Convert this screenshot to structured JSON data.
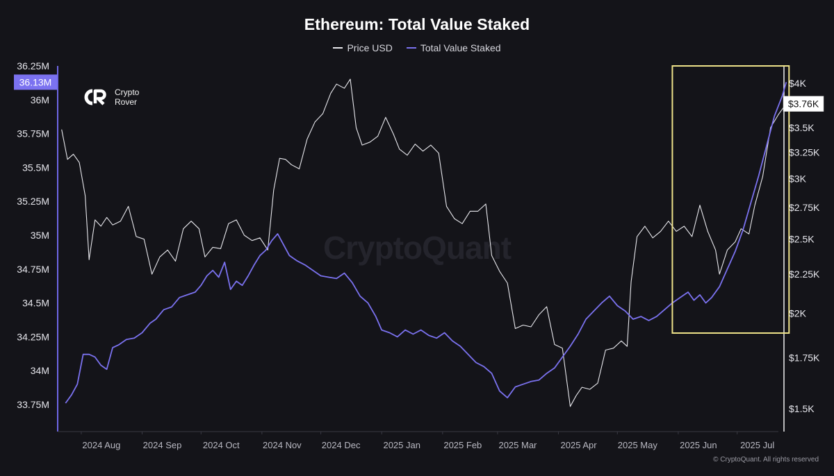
{
  "chart_data": {
    "type": "line",
    "title": "Ethereum: Total Value Staked",
    "legend_placement": "top-center",
    "grid": false,
    "colors": {
      "background": "#141419",
      "price": "#e9e9ee",
      "staked": "#7b72f0",
      "highlight_box": "#efe38a"
    },
    "x_ticks": [
      "2024 Aug",
      "2024 Sep",
      "2024 Oct",
      "2024 Nov",
      "2024 Dec",
      "2025 Jan",
      "2025 Feb",
      "2025 Mar",
      "2025 Apr",
      "2025 May",
      "2025 Jun",
      "2025 Jul"
    ],
    "x_range": [
      "2024-07-20",
      "2025-07-22"
    ],
    "y_left": {
      "ticks": [
        "36.25M",
        "36M",
        "35.75M",
        "35.5M",
        "35.25M",
        "35M",
        "34.75M",
        "34.5M",
        "34.25M",
        "34M",
        "33.75M"
      ],
      "range_millions": [
        33.55,
        36.25
      ],
      "current_label": "36.13M"
    },
    "y_right": {
      "ticks": [
        "$4K",
        "$3.5K",
        "$3.25K",
        "$3K",
        "$2.75K",
        "$2.5K",
        "$2.25K",
        "$2K",
        "$1.75K",
        "$1.5K"
      ],
      "current_label": "$3.76K",
      "scale": "log"
    },
    "series": [
      {
        "name": "Total Value Staked",
        "unit": "millions",
        "axis": "left",
        "points": [
          [
            "2024-07-24",
            33.76
          ],
          [
            "2024-07-27",
            33.82
          ],
          [
            "2024-07-30",
            33.9
          ],
          [
            "2024-08-02",
            34.12
          ],
          [
            "2024-08-05",
            34.12
          ],
          [
            "2024-08-08",
            34.1
          ],
          [
            "2024-08-11",
            34.04
          ],
          [
            "2024-08-14",
            34.01
          ],
          [
            "2024-08-17",
            34.17
          ],
          [
            "2024-08-20",
            34.19
          ],
          [
            "2024-08-24",
            34.23
          ],
          [
            "2024-08-28",
            34.24
          ],
          [
            "2024-09-01",
            34.28
          ],
          [
            "2024-09-05",
            34.35
          ],
          [
            "2024-09-08",
            34.38
          ],
          [
            "2024-09-12",
            34.45
          ],
          [
            "2024-09-16",
            34.47
          ],
          [
            "2024-09-20",
            34.54
          ],
          [
            "2024-09-24",
            34.56
          ],
          [
            "2024-09-28",
            34.58
          ],
          [
            "2024-10-01",
            34.63
          ],
          [
            "2024-10-04",
            34.7
          ],
          [
            "2024-10-07",
            34.74
          ],
          [
            "2024-10-10",
            34.69
          ],
          [
            "2024-10-13",
            34.8
          ],
          [
            "2024-10-16",
            34.6
          ],
          [
            "2024-10-19",
            34.66
          ],
          [
            "2024-10-22",
            34.63
          ],
          [
            "2024-10-25",
            34.7
          ],
          [
            "2024-10-28",
            34.78
          ],
          [
            "2024-10-31",
            34.85
          ],
          [
            "2024-11-03",
            34.89
          ],
          [
            "2024-11-06",
            34.96
          ],
          [
            "2024-11-09",
            35.01
          ],
          [
            "2024-11-12",
            34.93
          ],
          [
            "2024-11-15",
            34.85
          ],
          [
            "2024-11-19",
            34.81
          ],
          [
            "2024-11-23",
            34.78
          ],
          [
            "2024-11-27",
            34.74
          ],
          [
            "2024-12-01",
            34.7
          ],
          [
            "2024-12-05",
            34.69
          ],
          [
            "2024-12-09",
            34.68
          ],
          [
            "2024-12-13",
            34.72
          ],
          [
            "2024-12-17",
            34.65
          ],
          [
            "2024-12-21",
            34.55
          ],
          [
            "2024-12-25",
            34.5
          ],
          [
            "2024-12-29",
            34.4
          ],
          [
            "2025-01-01",
            34.3
          ],
          [
            "2025-01-05",
            34.28
          ],
          [
            "2025-01-09",
            34.25
          ],
          [
            "2025-01-13",
            34.3
          ],
          [
            "2025-01-17",
            34.27
          ],
          [
            "2025-01-21",
            34.3
          ],
          [
            "2025-01-25",
            34.26
          ],
          [
            "2025-01-29",
            34.24
          ],
          [
            "2025-02-02",
            34.28
          ],
          [
            "2025-02-06",
            34.22
          ],
          [
            "2025-02-10",
            34.18
          ],
          [
            "2025-02-14",
            34.12
          ],
          [
            "2025-02-18",
            34.06
          ],
          [
            "2025-02-22",
            34.03
          ],
          [
            "2025-02-26",
            33.98
          ],
          [
            "2025-03-02",
            33.85
          ],
          [
            "2025-03-06",
            33.8
          ],
          [
            "2025-03-10",
            33.88
          ],
          [
            "2025-03-14",
            33.9
          ],
          [
            "2025-03-18",
            33.92
          ],
          [
            "2025-03-22",
            33.93
          ],
          [
            "2025-03-26",
            33.98
          ],
          [
            "2025-03-30",
            34.02
          ],
          [
            "2025-04-03",
            34.1
          ],
          [
            "2025-04-07",
            34.18
          ],
          [
            "2025-04-11",
            34.27
          ],
          [
            "2025-04-15",
            34.38
          ],
          [
            "2025-04-19",
            34.44
          ],
          [
            "2025-04-23",
            34.5
          ],
          [
            "2025-04-27",
            34.55
          ],
          [
            "2025-05-01",
            34.48
          ],
          [
            "2025-05-05",
            34.44
          ],
          [
            "2025-05-09",
            34.38
          ],
          [
            "2025-05-13",
            34.4
          ],
          [
            "2025-05-17",
            34.37
          ],
          [
            "2025-05-21",
            34.4
          ],
          [
            "2025-05-25",
            34.45
          ],
          [
            "2025-05-29",
            34.5
          ],
          [
            "2025-06-02",
            34.54
          ],
          [
            "2025-06-06",
            34.58
          ],
          [
            "2025-06-09",
            34.52
          ],
          [
            "2025-06-12",
            34.56
          ],
          [
            "2025-06-15",
            34.5
          ],
          [
            "2025-06-18",
            34.54
          ],
          [
            "2025-06-22",
            34.62
          ],
          [
            "2025-06-26",
            34.75
          ],
          [
            "2025-06-30",
            34.88
          ],
          [
            "2025-07-04",
            35.04
          ],
          [
            "2025-07-08",
            35.24
          ],
          [
            "2025-07-12",
            35.44
          ],
          [
            "2025-07-16",
            35.66
          ],
          [
            "2025-07-20",
            35.88
          ],
          [
            "2025-07-24",
            36.03
          ],
          [
            "2025-07-26",
            36.13
          ]
        ]
      },
      {
        "name": "Price USD",
        "unit": "USD",
        "axis": "right",
        "points": [
          [
            "2024-07-22",
            3480
          ],
          [
            "2024-07-25",
            3180
          ],
          [
            "2024-07-28",
            3230
          ],
          [
            "2024-07-31",
            3150
          ],
          [
            "2024-08-03",
            2850
          ],
          [
            "2024-08-05",
            2350
          ],
          [
            "2024-08-08",
            2650
          ],
          [
            "2024-08-11",
            2600
          ],
          [
            "2024-08-14",
            2670
          ],
          [
            "2024-08-17",
            2610
          ],
          [
            "2024-08-21",
            2640
          ],
          [
            "2024-08-25",
            2760
          ],
          [
            "2024-08-29",
            2520
          ],
          [
            "2024-09-02",
            2500
          ],
          [
            "2024-09-06",
            2250
          ],
          [
            "2024-09-10",
            2370
          ],
          [
            "2024-09-14",
            2420
          ],
          [
            "2024-09-18",
            2340
          ],
          [
            "2024-09-22",
            2580
          ],
          [
            "2024-09-26",
            2640
          ],
          [
            "2024-09-30",
            2580
          ],
          [
            "2024-10-03",
            2370
          ],
          [
            "2024-10-07",
            2440
          ],
          [
            "2024-10-11",
            2430
          ],
          [
            "2024-10-15",
            2620
          ],
          [
            "2024-10-19",
            2650
          ],
          [
            "2024-10-23",
            2530
          ],
          [
            "2024-10-27",
            2490
          ],
          [
            "2024-10-31",
            2510
          ],
          [
            "2024-11-04",
            2420
          ],
          [
            "2024-11-07",
            2900
          ],
          [
            "2024-11-10",
            3190
          ],
          [
            "2024-11-13",
            3180
          ],
          [
            "2024-11-16",
            3130
          ],
          [
            "2024-11-20",
            3090
          ],
          [
            "2024-11-24",
            3380
          ],
          [
            "2024-11-28",
            3560
          ],
          [
            "2024-12-02",
            3650
          ],
          [
            "2024-12-06",
            3880
          ],
          [
            "2024-12-09",
            3990
          ],
          [
            "2024-12-13",
            3940
          ],
          [
            "2024-12-16",
            4050
          ],
          [
            "2024-12-19",
            3500
          ],
          [
            "2024-12-22",
            3320
          ],
          [
            "2024-12-26",
            3350
          ],
          [
            "2024-12-30",
            3410
          ],
          [
            "2025-01-03",
            3610
          ],
          [
            "2025-01-07",
            3430
          ],
          [
            "2025-01-10",
            3280
          ],
          [
            "2025-01-14",
            3220
          ],
          [
            "2025-01-18",
            3330
          ],
          [
            "2025-01-22",
            3260
          ],
          [
            "2025-01-26",
            3320
          ],
          [
            "2025-01-30",
            3240
          ],
          [
            "2025-02-03",
            2760
          ],
          [
            "2025-02-07",
            2660
          ],
          [
            "2025-02-11",
            2620
          ],
          [
            "2025-02-15",
            2720
          ],
          [
            "2025-02-19",
            2720
          ],
          [
            "2025-02-23",
            2780
          ],
          [
            "2025-02-26",
            2380
          ],
          [
            "2025-03-02",
            2270
          ],
          [
            "2025-03-06",
            2190
          ],
          [
            "2025-03-10",
            1910
          ],
          [
            "2025-03-14",
            1930
          ],
          [
            "2025-03-18",
            1920
          ],
          [
            "2025-03-22",
            1990
          ],
          [
            "2025-03-26",
            2040
          ],
          [
            "2025-03-30",
            1820
          ],
          [
            "2025-04-03",
            1800
          ],
          [
            "2025-04-07",
            1510
          ],
          [
            "2025-04-10",
            1560
          ],
          [
            "2025-04-13",
            1600
          ],
          [
            "2025-04-17",
            1590
          ],
          [
            "2025-04-21",
            1620
          ],
          [
            "2025-04-25",
            1790
          ],
          [
            "2025-04-29",
            1800
          ],
          [
            "2025-05-03",
            1840
          ],
          [
            "2025-05-06",
            1810
          ],
          [
            "2025-05-08",
            2200
          ],
          [
            "2025-05-11",
            2520
          ],
          [
            "2025-05-15",
            2600
          ],
          [
            "2025-05-19",
            2510
          ],
          [
            "2025-05-23",
            2560
          ],
          [
            "2025-05-27",
            2640
          ],
          [
            "2025-05-31",
            2560
          ],
          [
            "2025-06-04",
            2600
          ],
          [
            "2025-06-08",
            2520
          ],
          [
            "2025-06-12",
            2770
          ],
          [
            "2025-06-16",
            2560
          ],
          [
            "2025-06-20",
            2420
          ],
          [
            "2025-06-22",
            2250
          ],
          [
            "2025-06-26",
            2420
          ],
          [
            "2025-06-30",
            2480
          ],
          [
            "2025-07-03",
            2580
          ],
          [
            "2025-07-07",
            2540
          ],
          [
            "2025-07-10",
            2770
          ],
          [
            "2025-07-14",
            3020
          ],
          [
            "2025-07-18",
            3500
          ],
          [
            "2025-07-22",
            3640
          ],
          [
            "2025-07-26",
            3760
          ]
        ]
      }
    ],
    "highlight_range": [
      "2025-05-29",
      "2025-07-26"
    ]
  },
  "brand": {
    "logo_mark": "CR",
    "name_line1": "Crypto",
    "name_line2": "Rover"
  },
  "watermark": "CryptoQuant",
  "copyright": "© CryptoQuant. All rights reserved"
}
